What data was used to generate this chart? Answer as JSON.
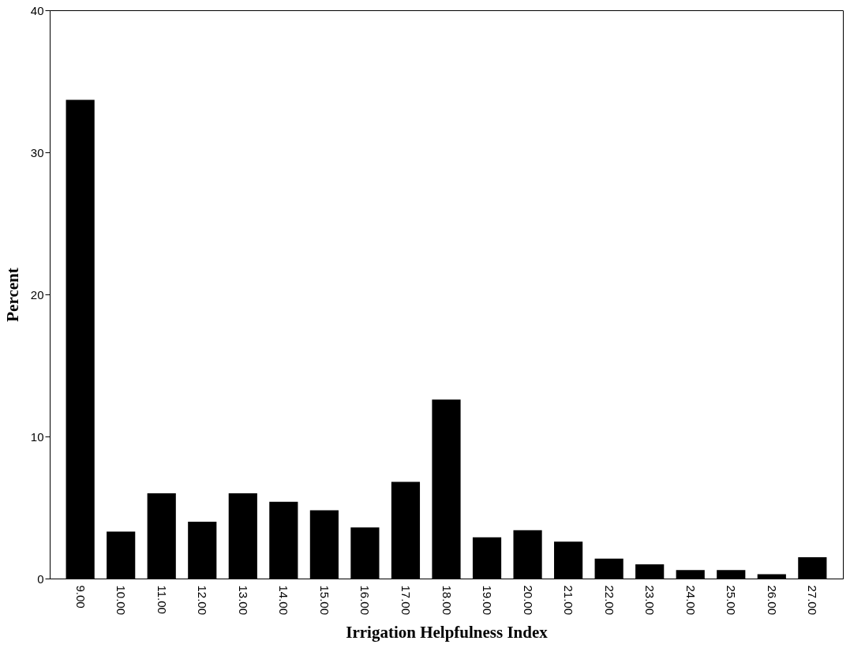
{
  "chart_data": {
    "type": "bar",
    "xlabel": "Irrigation Helpfulness Index",
    "ylabel": "Percent",
    "categories": [
      "9.00",
      "10.00",
      "11.00",
      "12.00",
      "13.00",
      "14.00",
      "15.00",
      "16.00",
      "17.00",
      "18.00",
      "19.00",
      "20.00",
      "21.00",
      "22.00",
      "23.00",
      "24.00",
      "25.00",
      "26.00",
      "27.00"
    ],
    "values": [
      33.7,
      3.3,
      6.0,
      4.0,
      6.0,
      5.4,
      4.8,
      3.6,
      6.8,
      12.6,
      2.9,
      3.4,
      2.6,
      1.4,
      1.0,
      0.6,
      0.6,
      0.3,
      1.5
    ],
    "color": "#000000",
    "ylim": [
      0,
      40
    ],
    "yticks": [
      0,
      10,
      20,
      30,
      40
    ],
    "grid": false
  }
}
